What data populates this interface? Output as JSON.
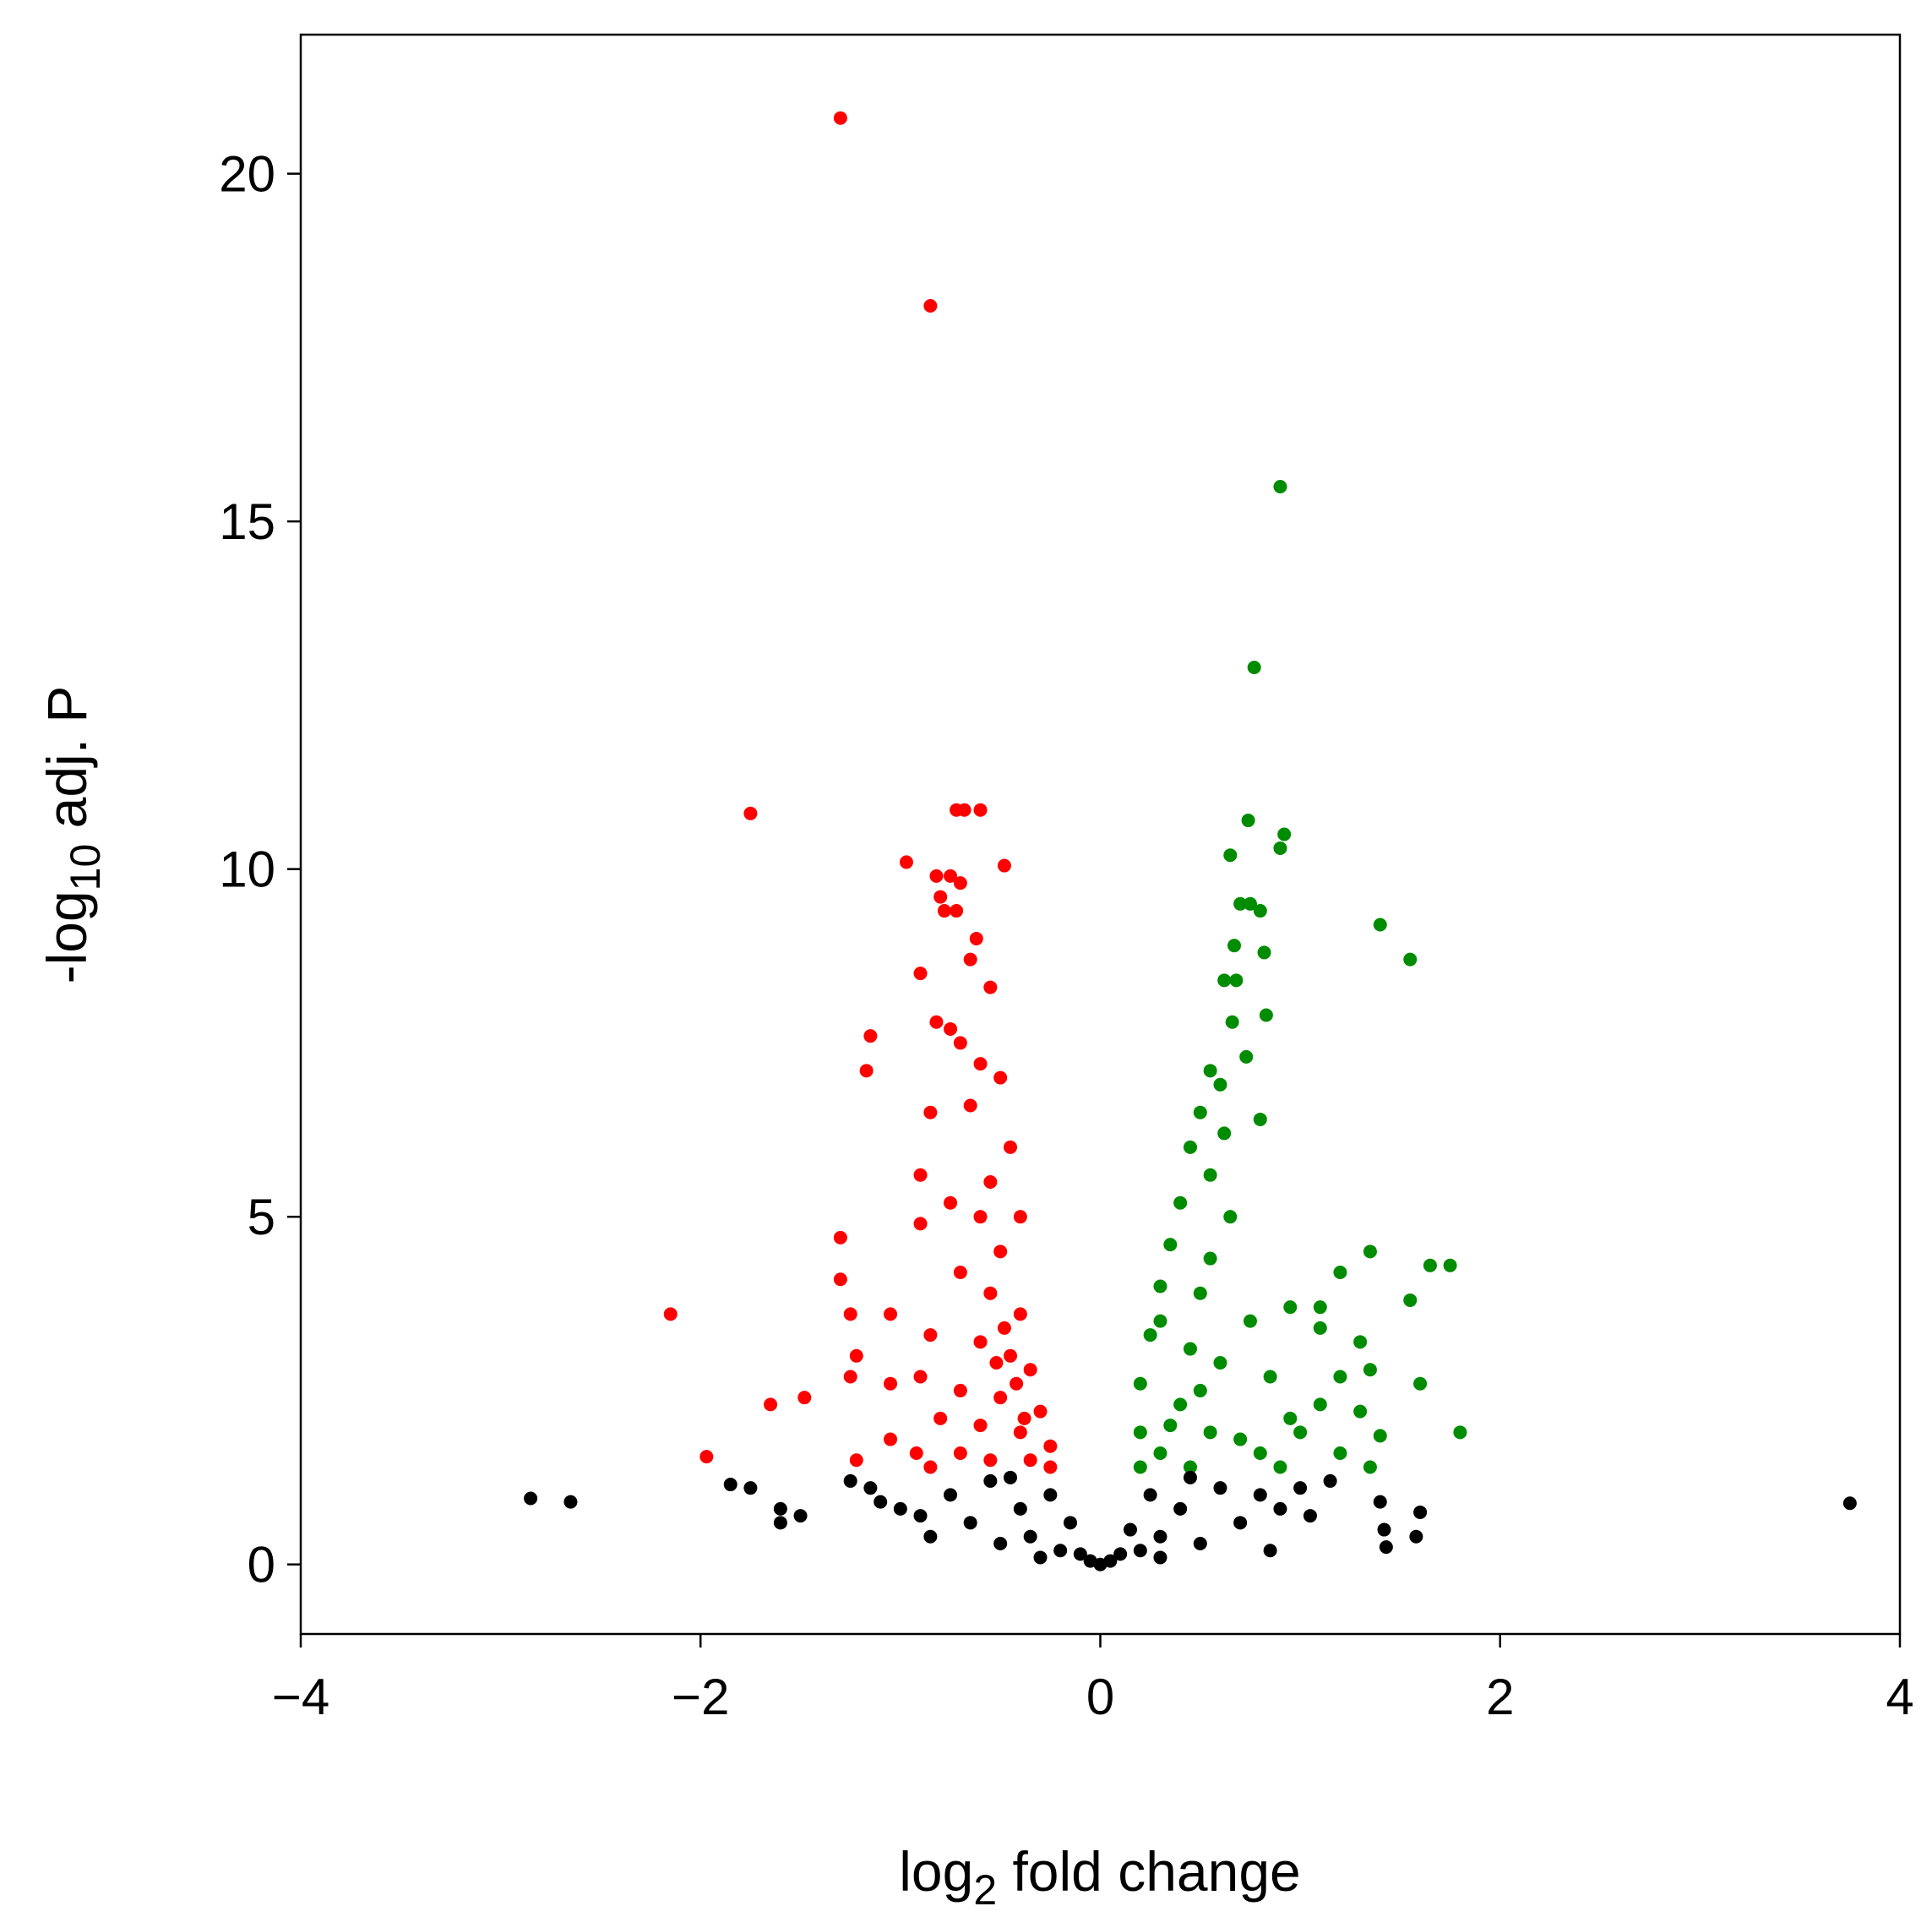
{
  "chart_data": {
    "type": "scatter",
    "x_label": [
      "log",
      "2",
      " fold change"
    ],
    "y_label": [
      "-log",
      "10",
      " adj. P"
    ],
    "xlim": [
      -4,
      4
    ],
    "ylim": [
      -1,
      22
    ],
    "xticks": [
      {
        "value": -4,
        "label": "−4"
      },
      {
        "value": -2,
        "label": "−2"
      },
      0,
      2,
      4
    ],
    "yticks": [
      0,
      5,
      10,
      15,
      20
    ],
    "series": [
      {
        "color": "#ff0000",
        "x": [
          -1.3,
          -0.85,
          -1.75,
          -0.72,
          -0.68,
          -0.6,
          -0.97,
          -0.48,
          -0.82,
          -0.75,
          -0.7,
          -0.8,
          -0.72,
          -0.78,
          -0.62,
          -0.9,
          -0.55,
          -0.65,
          -1.15,
          -0.82,
          -0.75,
          -1.17,
          -0.7,
          -0.6,
          -0.5,
          -0.85,
          -0.65,
          -0.45,
          -0.9,
          -0.55,
          -0.75,
          -0.6,
          -0.4,
          -1.3,
          -0.9,
          -0.5,
          -0.7,
          -1.3,
          -0.55,
          -0.4,
          -2.15,
          -1.25,
          -1.05,
          -0.85,
          -0.6,
          -0.45,
          -0.35,
          -1.22,
          -1.25,
          -1.05,
          -0.9,
          -0.7,
          -0.5,
          -0.3,
          -1.65,
          -1.48,
          -0.8,
          -0.6,
          -0.4,
          -0.25,
          -1.05,
          -0.92,
          -1.22,
          -1.97,
          -0.7,
          -0.55,
          -0.35,
          -0.25,
          -0.85,
          -0.48,
          -0.42,
          -0.52,
          -0.38
        ],
        "y": [
          20.8,
          18.1,
          10.8,
          10.85,
          10.85,
          10.85,
          10.1,
          10.05,
          9.9,
          9.9,
          9.8,
          9.6,
          9.4,
          9.4,
          9.0,
          8.5,
          8.3,
          8.7,
          7.6,
          7.8,
          7.7,
          7.1,
          7.5,
          7.2,
          7.0,
          6.5,
          6.6,
          6.0,
          5.6,
          5.5,
          5.2,
          5.0,
          5.0,
          4.7,
          4.9,
          4.5,
          4.2,
          4.1,
          3.9,
          3.6,
          3.6,
          3.6,
          3.6,
          3.3,
          3.2,
          3.0,
          2.8,
          3.0,
          2.7,
          2.6,
          2.7,
          2.5,
          2.4,
          2.2,
          2.3,
          2.4,
          2.1,
          2.0,
          1.9,
          1.7,
          1.8,
          1.6,
          1.5,
          1.55,
          1.6,
          1.5,
          1.5,
          1.4,
          1.4,
          3.4,
          2.6,
          2.9,
          2.1
        ]
      },
      {
        "color": "#008c00",
        "x": [
          0.9,
          0.77,
          0.74,
          0.92,
          0.9,
          0.65,
          0.7,
          0.75,
          0.8,
          1.4,
          1.55,
          0.67,
          0.82,
          0.68,
          0.62,
          0.83,
          0.66,
          0.73,
          0.55,
          0.6,
          0.5,
          0.62,
          0.45,
          0.8,
          0.55,
          0.4,
          0.65,
          0.35,
          0.55,
          1.35,
          1.2,
          1.65,
          1.75,
          0.3,
          0.5,
          1.55,
          0.95,
          1.1,
          0.75,
          0.25,
          1.1,
          1.3,
          0.45,
          0.6,
          0.2,
          0.85,
          1.2,
          1.35,
          1.6,
          0.4,
          1.1,
          0.95,
          1.3,
          0.2,
          0.55,
          0.7,
          1.0,
          1.4,
          1.8,
          0.3,
          0.8,
          1.2,
          0.2,
          0.45,
          0.9,
          1.35,
          0.35,
          0.5,
          0.3
        ],
        "y": [
          15.5,
          12.9,
          10.7,
          10.5,
          10.3,
          10.2,
          9.5,
          9.5,
          9.4,
          9.2,
          8.7,
          8.9,
          8.8,
          8.4,
          8.4,
          7.9,
          7.8,
          7.3,
          7.1,
          6.9,
          6.5,
          6.2,
          6.0,
          6.4,
          5.6,
          5.2,
          5.0,
          4.6,
          4.4,
          4.5,
          4.2,
          4.3,
          4.3,
          4.0,
          3.9,
          3.8,
          3.7,
          3.7,
          3.5,
          3.3,
          3.4,
          3.2,
          3.1,
          2.9,
          2.6,
          2.7,
          2.7,
          2.8,
          2.6,
          2.3,
          2.3,
          2.1,
          2.2,
          1.9,
          1.9,
          1.8,
          1.9,
          1.85,
          1.9,
          1.6,
          1.6,
          1.6,
          1.4,
          1.4,
          1.4,
          1.4,
          2.0,
          2.5,
          3.5
        ]
      },
      {
        "color": "#000000",
        "x": [
          -2.85,
          -2.65,
          -1.85,
          -1.75,
          -1.6,
          -1.5,
          -1.6,
          -1.25,
          -1.15,
          -1.1,
          -1.0,
          -0.9,
          -0.85,
          -0.75,
          -0.65,
          -0.55,
          -0.5,
          -0.4,
          -0.35,
          -0.25,
          -0.2,
          -0.15,
          -0.1,
          -0.05,
          0,
          0.05,
          0.1,
          0.15,
          0.2,
          0.25,
          0.3,
          0.4,
          0.5,
          0.6,
          0.7,
          0.8,
          0.85,
          0.9,
          1.0,
          1.05,
          1.15,
          1.4,
          1.42,
          1.43,
          1.58,
          1.6,
          3.75,
          -0.45,
          0.45,
          -0.3,
          0.3
        ],
        "y": [
          0.95,
          0.9,
          1.15,
          1.1,
          0.8,
          0.7,
          0.6,
          1.2,
          1.1,
          0.9,
          0.8,
          0.7,
          0.4,
          1.0,
          0.6,
          1.2,
          0.3,
          0.8,
          0.4,
          1.0,
          0.2,
          0.6,
          0.15,
          0.05,
          0.0,
          0.05,
          0.15,
          0.5,
          0.2,
          1.0,
          0.4,
          0.8,
          0.3,
          1.1,
          0.6,
          1.0,
          0.2,
          0.8,
          1.1,
          0.7,
          1.2,
          0.9,
          0.5,
          0.25,
          0.4,
          0.75,
          0.88,
          1.25,
          1.25,
          0.1,
          0.1
        ]
      }
    ]
  }
}
